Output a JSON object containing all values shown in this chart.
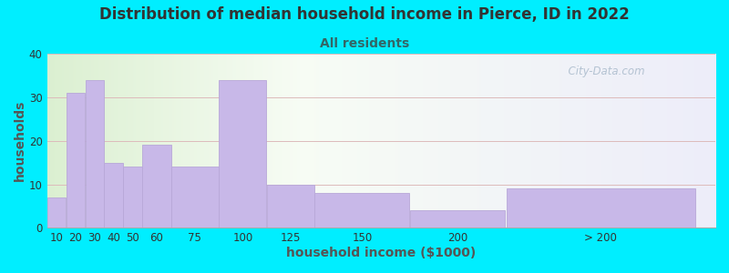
{
  "title": "Distribution of median household income in Pierce, ID in 2022",
  "subtitle": "All residents",
  "xlabel": "household income ($1000)",
  "ylabel": "households",
  "bar_color": "#c8b8e8",
  "bar_edge_color": "#b8a8d8",
  "background_color": "#00eeff",
  "ylim": [
    0,
    40
  ],
  "yticks": [
    0,
    10,
    20,
    30,
    40
  ],
  "categories": [
    "10",
    "20",
    "30",
    "40",
    "50",
    "60",
    "75",
    "100",
    "125",
    "150",
    "200",
    "> 200"
  ],
  "values": [
    7,
    31,
    34,
    15,
    14,
    19,
    14,
    34,
    10,
    8,
    4,
    9
  ],
  "bar_widths": [
    10,
    10,
    10,
    10,
    10,
    15,
    25,
    25,
    25,
    50,
    50,
    100
  ],
  "bar_lefts": [
    10,
    20,
    30,
    40,
    50,
    60,
    75,
    100,
    125,
    150,
    200,
    250
  ],
  "xlim_left": 10,
  "xlim_right": 360,
  "title_fontsize": 12,
  "subtitle_fontsize": 10,
  "axis_label_fontsize": 10,
  "tick_fontsize": 8.5,
  "title_color": "#333333",
  "subtitle_color": "#336666",
  "watermark_text": "  City-Data.com",
  "watermark_color": "#aabbcc",
  "grid_color": "#ddbbbb",
  "axis_label_color": "#555555"
}
